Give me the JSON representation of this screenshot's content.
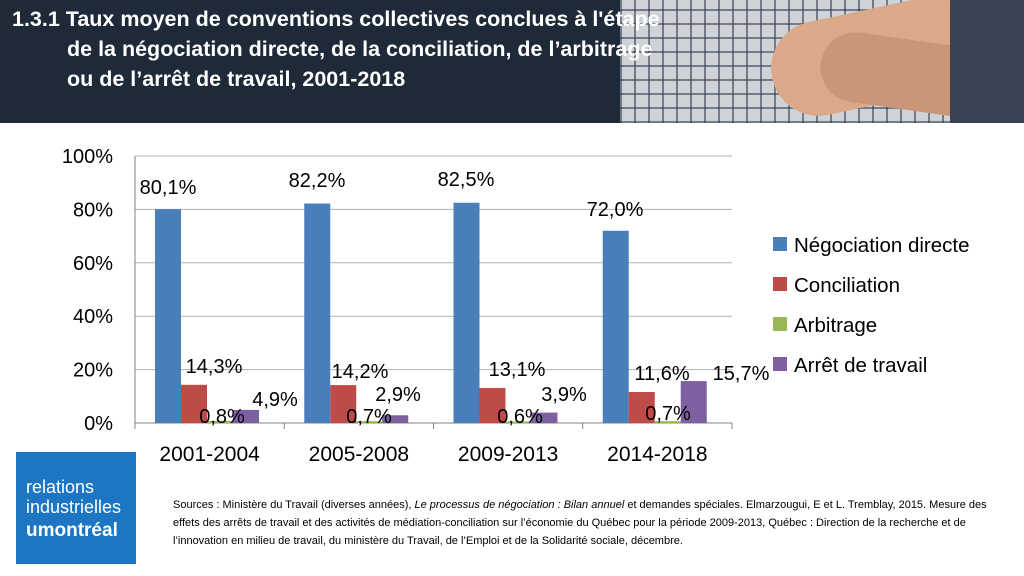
{
  "header": {
    "title": "1.3.1 Taux moyen de conventions collectives conclues à l'étape de la négociation directe, de la conciliation, de l’arbitrage ou de l’arrêt de travail, 2001-2018"
  },
  "chart_data": {
    "type": "bar",
    "categories": [
      "2001-2004",
      "2005-2008",
      "2009-2013",
      "2014-2018"
    ],
    "series": [
      {
        "name": "Négociation directe",
        "color": "#4a7ebb",
        "values": [
          80.1,
          82.2,
          82.5,
          72.0
        ],
        "labels": [
          "80,1%",
          "82,2%",
          "82,5%",
          "72,0%"
        ]
      },
      {
        "name": "Conciliation",
        "color": "#be4b48",
        "values": [
          14.3,
          14.2,
          13.1,
          11.6
        ],
        "labels": [
          "14,3%",
          "14,2%",
          "13,1%",
          "11,6%"
        ]
      },
      {
        "name": "Arbitrage",
        "color": "#98b954",
        "values": [
          0.8,
          0.7,
          0.6,
          0.7
        ],
        "labels": [
          "0,8%",
          "0,7%",
          "0,6%",
          "0,7%"
        ]
      },
      {
        "name": "Arrêt de travail",
        "color": "#7d60a0",
        "values": [
          4.9,
          2.9,
          3.9,
          15.7
        ],
        "labels": [
          "4,9%",
          "2,9%",
          "3,9%",
          "15,7%"
        ]
      }
    ],
    "ylim": [
      0,
      100
    ],
    "yticks": [
      "0%",
      "20%",
      "40%",
      "60%",
      "80%",
      "100%"
    ],
    "grid": true,
    "legend": "right"
  },
  "logo": {
    "line1": "relations",
    "line2": "industrielles",
    "line3": "umontréal"
  },
  "sources": {
    "prefix": "Sources : Ministère du Travail (diverses années), ",
    "italic": "Le processus de négociation : Bilan annuel",
    "suffix": " et demandes spéciales. Elmarzougui, E et L. Tremblay, 2015. Mesure des effets des arrêts de travail et des activités de médiation-conciliation sur l’économie du Québec pour la période 2009-2013, Québec : Direction de la recherche et de l’innovation en milieu de travail, du ministère du Travail, de l’Emploi et de la Solidarité sociale, décembre."
  }
}
